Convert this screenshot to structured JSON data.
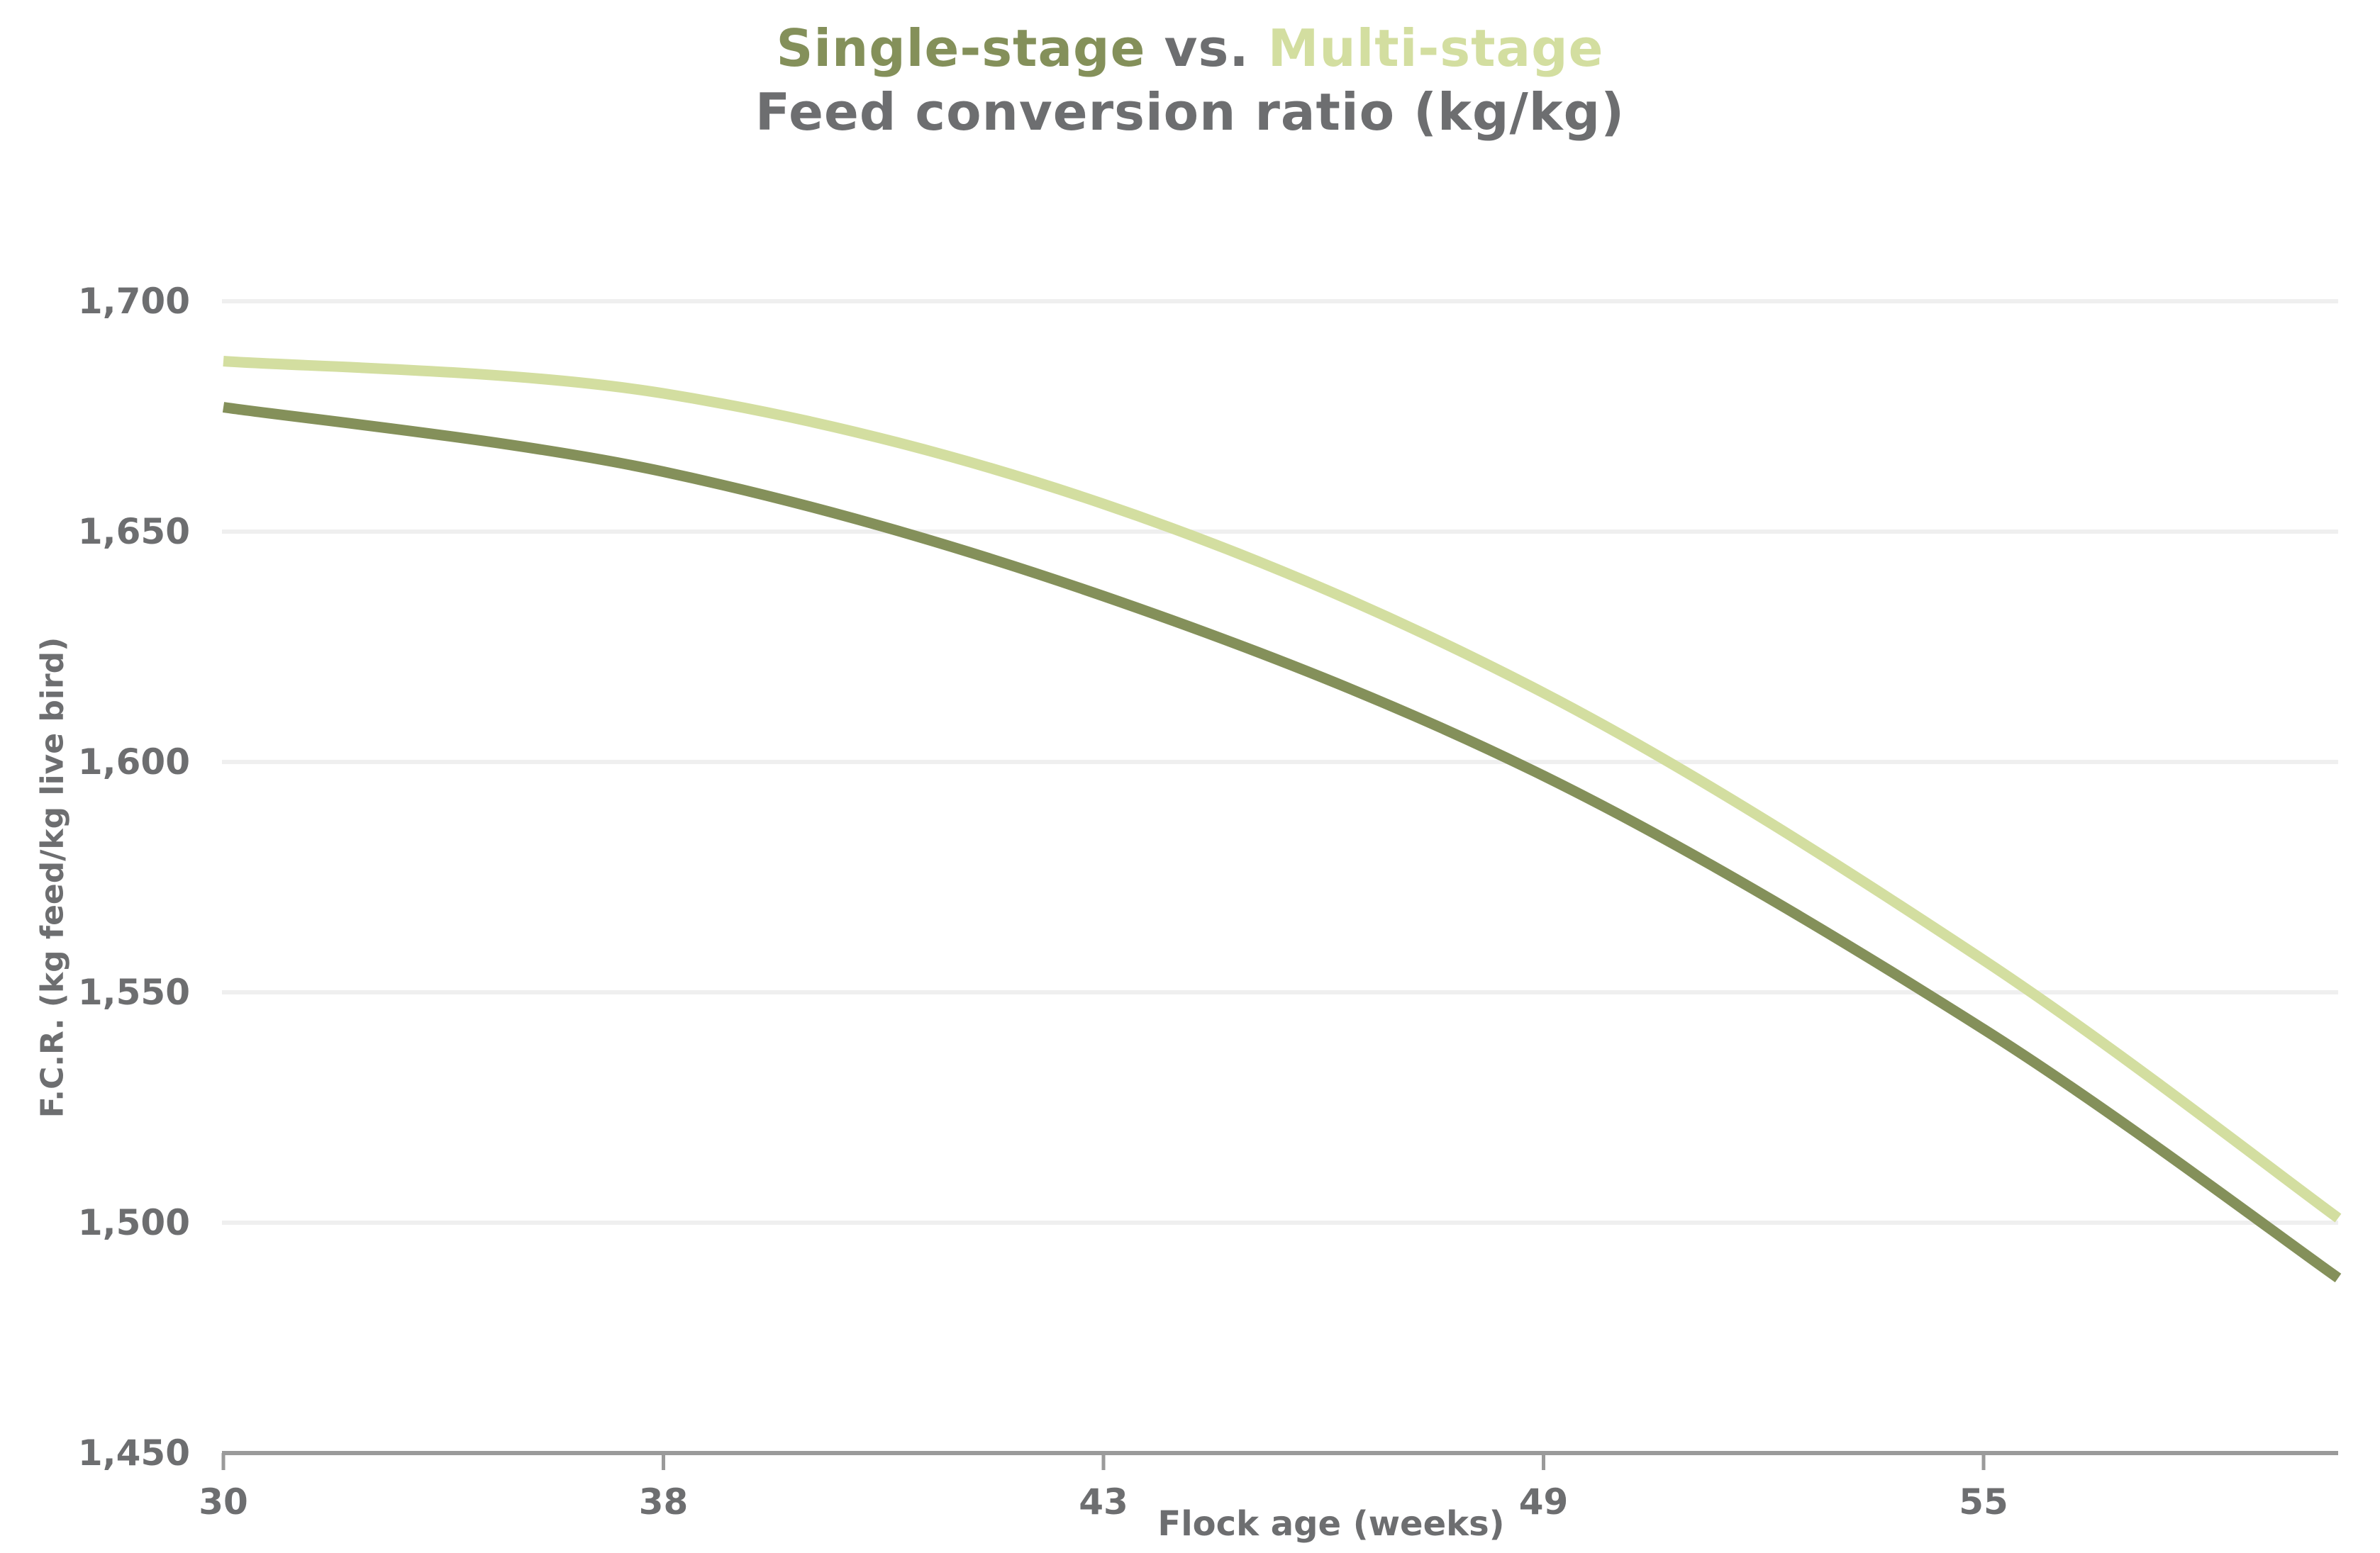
{
  "title": {
    "series1": "Single-stage",
    "vs": " vs. ",
    "series2": "Multi-stage",
    "subtitle": "Feed conversion ratio (kg/kg)"
  },
  "axes": {
    "y_title": "F.C.R. (kg feed/kg live bird)",
    "x_title": "Flock age (weeks)",
    "y_tick_labels": [
      "1,450",
      "1,500",
      "1,550",
      "1,600",
      "1,650",
      "1,700"
    ],
    "x_tick_labels": [
      "30",
      "38",
      "43",
      "49",
      "55"
    ]
  },
  "colors": {
    "single_stage": "#84905A",
    "multi_stage": "#D3DEA0",
    "text_gray": "#6D6E70",
    "axis_line": "#9A9A9A",
    "gridline": "#EFEFEF",
    "background": "#FFFFFF"
  },
  "chart_data": {
    "type": "line",
    "title": "Single-stage vs. Multi-stage",
    "subtitle": "Feed conversion ratio (kg/kg)",
    "xlabel": "Flock age (weeks)",
    "ylabel": "F.C.R. (kg feed/kg live bird)",
    "ylim": [
      1450,
      1700
    ],
    "y_ticks": [
      1450,
      1500,
      1550,
      1600,
      1650,
      1700
    ],
    "x_ticks": [
      30,
      38,
      43,
      49,
      55
    ],
    "grid": "horizontal gridlines only",
    "legend": "none; series identified by colored words in the title",
    "notes": "Ticks are evenly spaced category-style; both curves continue past the 55-week tick to the right edge of the plot (~60 weeks). Smooth curves, no point markers.",
    "series": [
      {
        "name": "Multi-stage",
        "color": "#D3DEA0",
        "x": [
          30,
          38,
          43,
          49,
          55,
          60
        ],
        "values": [
          1687,
          1680,
          1656,
          1615,
          1557,
          1501
        ]
      },
      {
        "name": "Single-stage",
        "color": "#84905A",
        "x": [
          30,
          38,
          43,
          49,
          55,
          60
        ],
        "values": [
          1677,
          1663,
          1636,
          1597,
          1542,
          1488
        ]
      }
    ]
  }
}
